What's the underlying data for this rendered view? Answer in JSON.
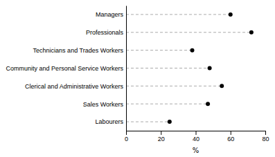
{
  "chart_data": {
    "type": "dot",
    "categories": [
      "Labourers",
      "Sales Workers",
      "Clerical and Administrative Workers",
      "Community and Personal Service Workers",
      "Technicians and Trades Workers",
      "Professionals",
      "Managers"
    ],
    "values": [
      25,
      47,
      55,
      48,
      38,
      72,
      60
    ],
    "color": "#000000",
    "line_style": "dashed",
    "orientation": "horizontal",
    "xlabel": "%",
    "xlim": [
      0,
      80
    ],
    "xticks": [
      0,
      20,
      40,
      60,
      80
    ],
    "grid": false
  }
}
